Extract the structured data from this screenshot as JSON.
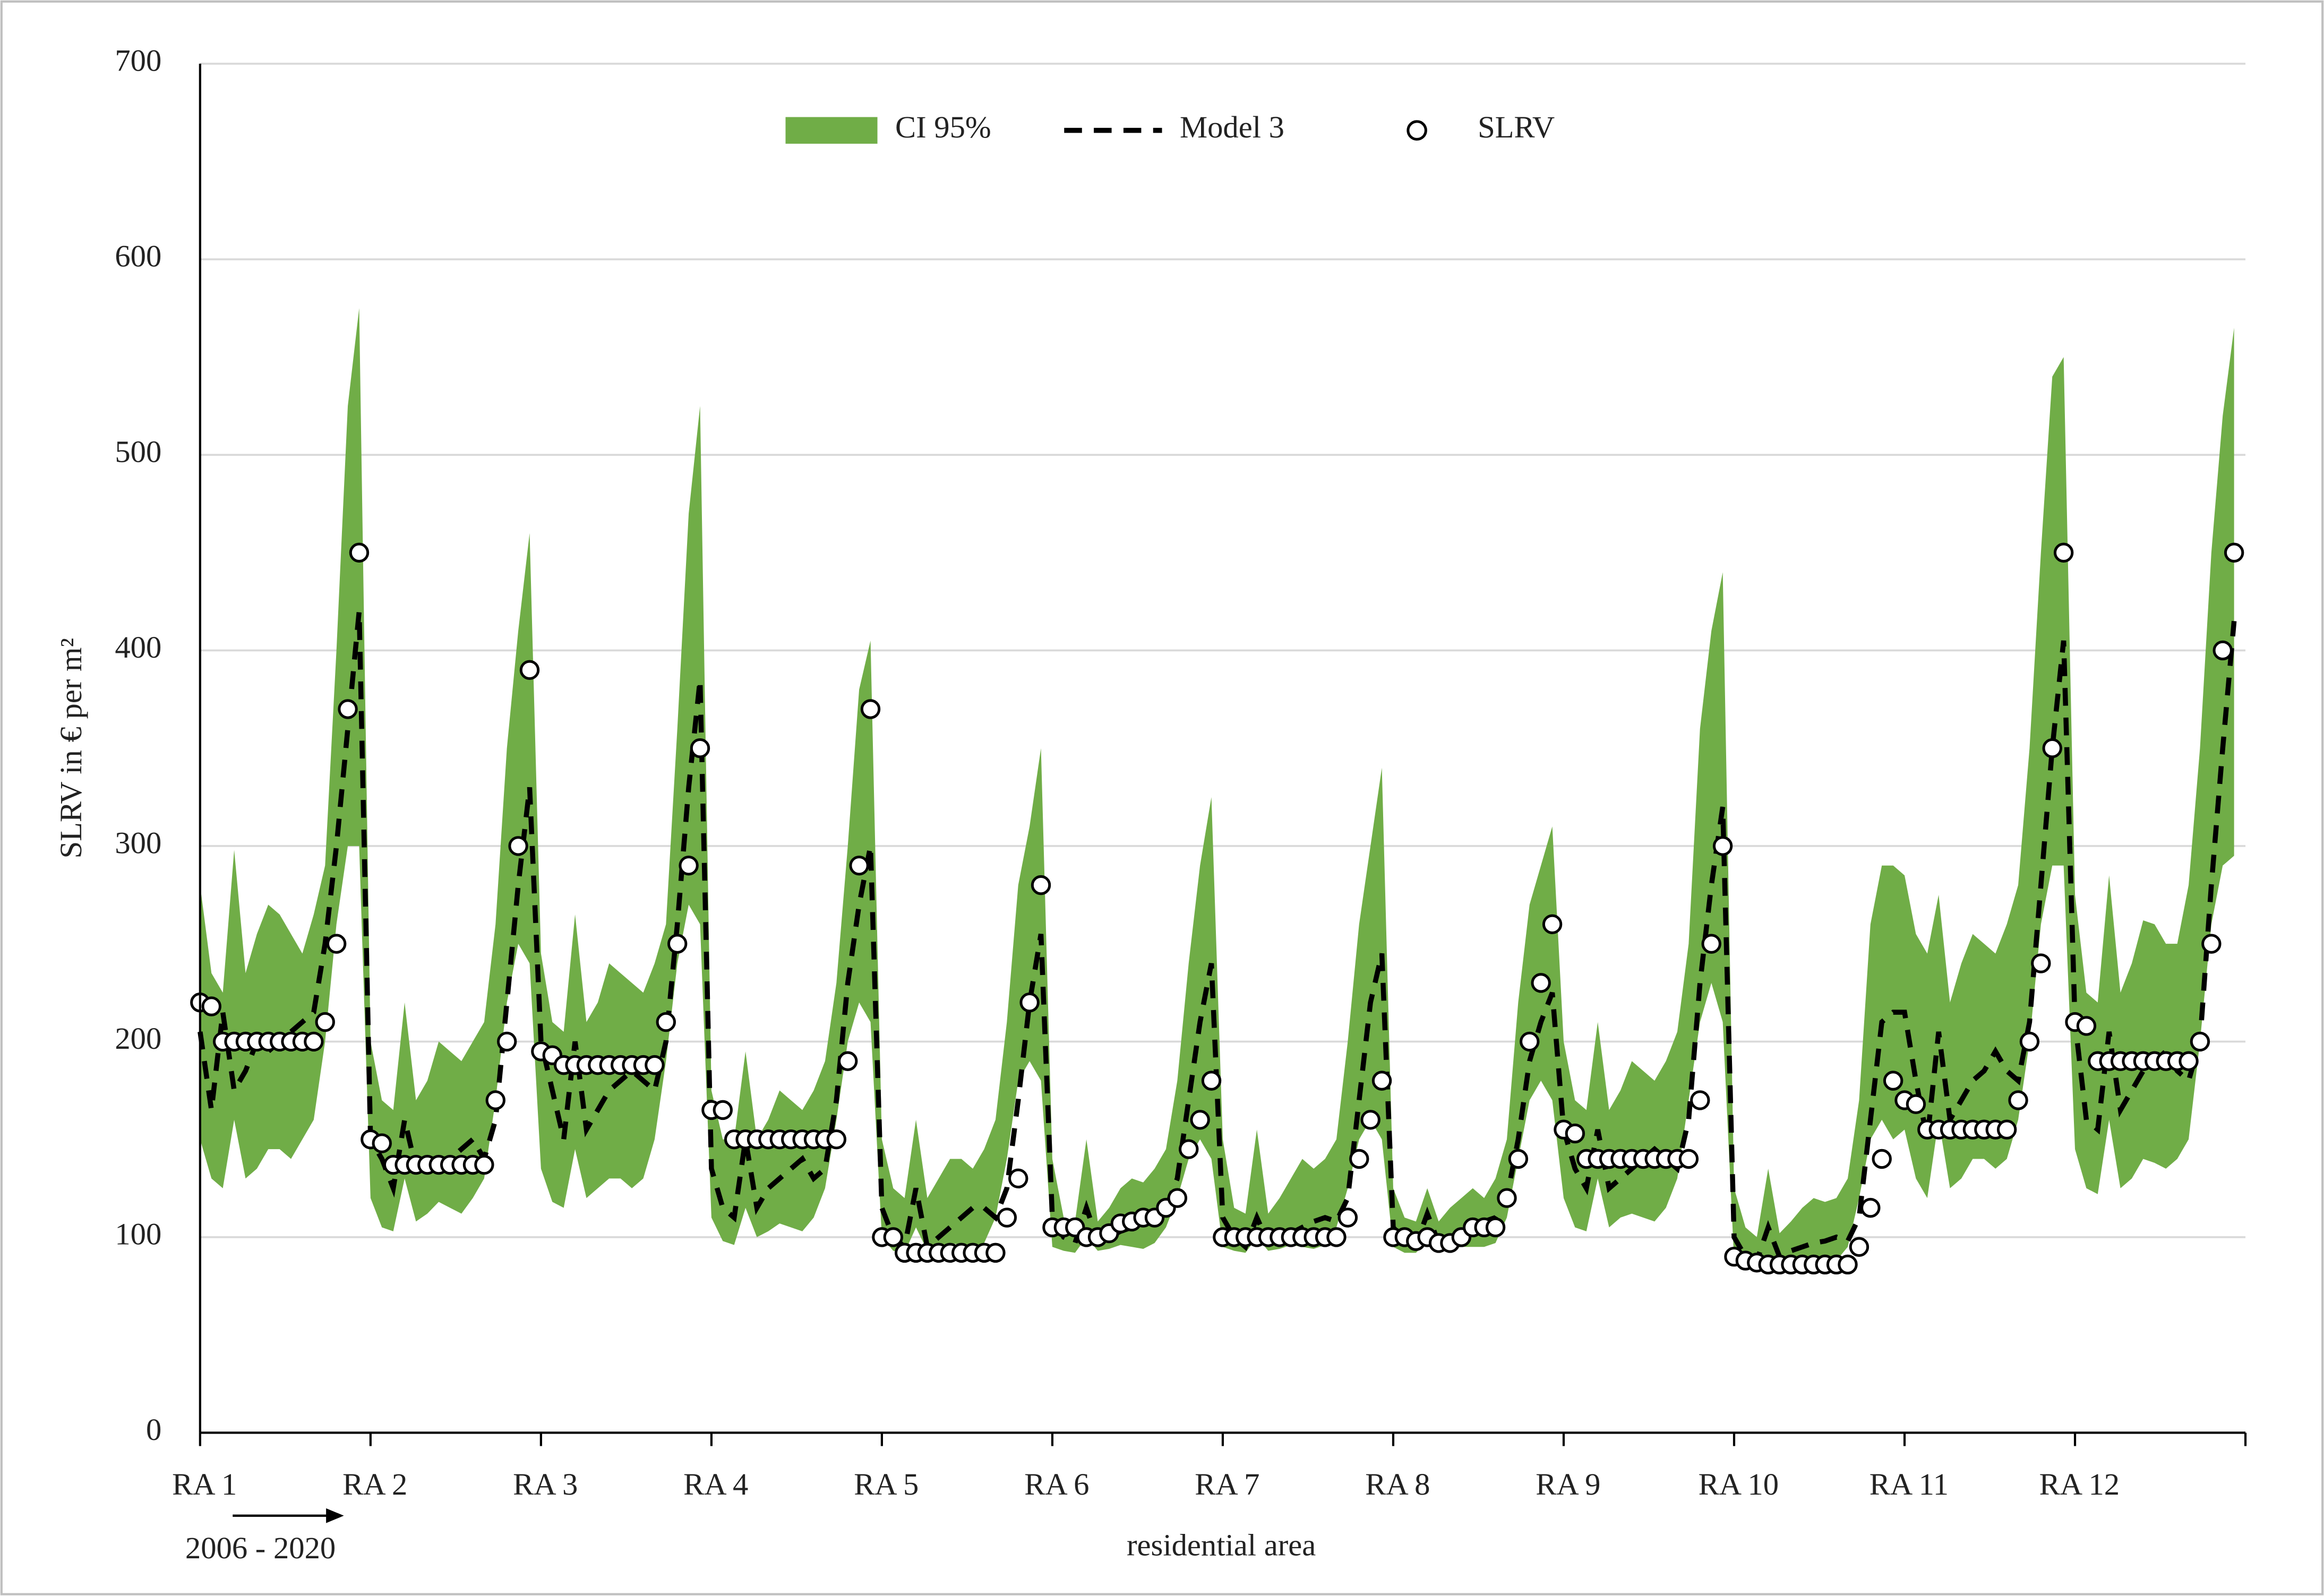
{
  "chart_data": {
    "type": "line",
    "ylabel": "SLRV in € per m²",
    "xlabel": "residential area",
    "annotation": "2006 - 2020",
    "ylim": [
      0,
      700
    ],
    "yticks": [
      0,
      100,
      200,
      300,
      400,
      500,
      600,
      700
    ],
    "xlim": [
      0,
      180
    ],
    "xticks": [
      0,
      15,
      30,
      45,
      60,
      75,
      90,
      105,
      120,
      135,
      150,
      165,
      180
    ],
    "grid": true,
    "legend": "top",
    "categories": [
      "RA 1",
      null,
      null,
      null,
      null,
      null,
      null,
      null,
      null,
      null,
      null,
      null,
      null,
      null,
      null,
      "RA 2",
      null,
      null,
      null,
      null,
      null,
      null,
      null,
      null,
      null,
      null,
      null,
      null,
      null,
      null,
      "RA 3",
      null,
      null,
      null,
      null,
      null,
      null,
      null,
      null,
      null,
      null,
      null,
      null,
      null,
      null,
      "RA 4",
      null,
      null,
      null,
      null,
      null,
      null,
      null,
      null,
      null,
      null,
      null,
      null,
      null,
      null,
      "RA 5",
      null,
      null,
      null,
      null,
      null,
      null,
      null,
      null,
      null,
      null,
      null,
      null,
      null,
      null,
      "RA 6",
      null,
      null,
      null,
      null,
      null,
      null,
      null,
      null,
      null,
      null,
      null,
      null,
      null,
      null,
      "RA 7",
      null,
      null,
      null,
      null,
      null,
      null,
      null,
      null,
      null,
      null,
      null,
      null,
      null,
      null,
      "RA 8",
      null,
      null,
      null,
      null,
      null,
      null,
      null,
      null,
      null,
      null,
      null,
      null,
      null,
      null,
      "RA 9",
      null,
      null,
      null,
      null,
      null,
      null,
      null,
      null,
      null,
      null,
      null,
      null,
      null,
      null,
      "RA 10",
      null,
      null,
      null,
      null,
      null,
      null,
      null,
      null,
      null,
      null,
      null,
      null,
      null,
      null,
      "RA 11",
      null,
      null,
      null,
      null,
      null,
      null,
      null,
      null,
      null,
      null,
      null,
      null,
      null,
      null,
      "RA 12",
      null,
      null,
      null,
      null,
      null,
      null,
      null,
      null,
      null,
      null,
      null,
      null,
      null,
      null
    ],
    "series": [
      {
        "name": "CI 95%",
        "color": "#70ad47",
        "style": "band",
        "upper": [
          280,
          235,
          225,
          298,
          235,
          255,
          270,
          265,
          255,
          245,
          265,
          290,
          400,
          525,
          575,
          200,
          170,
          165,
          220,
          170,
          180,
          200,
          195,
          190,
          200,
          210,
          260,
          350,
          410,
          460,
          245,
          210,
          205,
          265,
          210,
          220,
          240,
          235,
          230,
          225,
          240,
          260,
          360,
          470,
          525,
          175,
          150,
          150,
          195,
          150,
          160,
          175,
          170,
          165,
          175,
          190,
          230,
          300,
          380,
          405,
          150,
          125,
          120,
          160,
          120,
          130,
          140,
          140,
          135,
          145,
          160,
          210,
          280,
          310,
          350,
          140,
          110,
          108,
          150,
          108,
          115,
          125,
          130,
          128,
          135,
          145,
          180,
          240,
          290,
          325,
          150,
          115,
          112,
          155,
          112,
          120,
          130,
          140,
          135,
          140,
          150,
          200,
          260,
          300,
          340,
          125,
          110,
          108,
          125,
          108,
          115,
          120,
          125,
          120,
          130,
          150,
          220,
          270,
          290,
          310,
          200,
          170,
          165,
          210,
          165,
          175,
          190,
          185,
          180,
          190,
          205,
          250,
          360,
          410,
          440,
          125,
          105,
          100,
          135,
          102,
          108,
          115,
          120,
          118,
          120,
          130,
          170,
          260,
          290,
          290,
          285,
          255,
          245,
          275,
          220,
          240,
          255,
          250,
          245,
          260,
          280,
          350,
          450,
          540,
          550,
          275,
          225,
          220,
          285,
          225,
          240,
          262,
          260,
          250,
          250,
          280,
          350,
          450,
          520,
          565
        ],
        "lower": [
          150,
          130,
          125,
          160,
          130,
          135,
          145,
          145,
          140,
          150,
          160,
          200,
          260,
          300,
          300,
          120,
          105,
          103,
          130,
          108,
          112,
          118,
          115,
          112,
          120,
          130,
          170,
          220,
          250,
          240,
          135,
          118,
          115,
          145,
          120,
          125,
          130,
          130,
          125,
          130,
          150,
          190,
          240,
          270,
          260,
          110,
          98,
          96,
          115,
          100,
          103,
          107,
          105,
          103,
          110,
          125,
          160,
          200,
          220,
          210,
          100,
          93,
          92,
          105,
          93,
          95,
          97,
          96,
          94,
          97,
          110,
          140,
          180,
          190,
          180,
          95,
          93,
          92,
          100,
          93,
          94,
          96,
          95,
          94,
          97,
          105,
          120,
          140,
          150,
          140,
          95,
          93,
          92,
          100,
          93,
          94,
          96,
          95,
          94,
          96,
          105,
          125,
          150,
          160,
          150,
          95,
          92,
          92,
          98,
          93,
          94,
          95,
          95,
          95,
          97,
          110,
          140,
          170,
          180,
          170,
          120,
          105,
          103,
          130,
          105,
          110,
          112,
          110,
          108,
          115,
          130,
          170,
          210,
          230,
          210,
          88,
          86,
          85,
          90,
          86,
          87,
          88,
          88,
          87,
          88,
          95,
          120,
          150,
          160,
          150,
          155,
          130,
          120,
          160,
          125,
          130,
          140,
          140,
          135,
          140,
          160,
          200,
          260,
          290,
          290,
          145,
          125,
          122,
          160,
          125,
          130,
          140,
          138,
          135,
          140,
          150,
          200,
          260,
          290,
          295
        ]
      },
      {
        "name": "Model 3",
        "color": "#000000",
        "style": "dashed",
        "values": [
          205,
          165,
          215,
          175,
          185,
          200,
          195,
          200,
          205,
          210,
          215,
          250,
          300,
          360,
          420,
          150,
          140,
          125,
          160,
          135,
          140,
          140,
          140,
          145,
          150,
          140,
          160,
          220,
          280,
          330,
          200,
          175,
          150,
          200,
          155,
          165,
          175,
          180,
          185,
          180,
          175,
          200,
          260,
          330,
          385,
          135,
          115,
          110,
          150,
          115,
          125,
          130,
          135,
          140,
          130,
          135,
          170,
          230,
          270,
          300,
          115,
          100,
          95,
          125,
          95,
          100,
          105,
          110,
          115,
          115,
          110,
          125,
          170,
          220,
          255,
          110,
          100,
          97,
          115,
          98,
          100,
          103,
          105,
          108,
          110,
          115,
          130,
          170,
          210,
          240,
          110,
          100,
          95,
          110,
          97,
          100,
          102,
          105,
          108,
          110,
          108,
          120,
          170,
          220,
          245,
          105,
          98,
          96,
          112,
          97,
          100,
          103,
          105,
          108,
          110,
          120,
          150,
          190,
          210,
          225,
          155,
          135,
          125,
          155,
          125,
          130,
          135,
          140,
          145,
          140,
          135,
          160,
          230,
          280,
          320,
          100,
          90,
          88,
          105,
          90,
          93,
          95,
          97,
          98,
          100,
          98,
          110,
          160,
          210,
          215,
          215,
          180,
          150,
          205,
          160,
          170,
          180,
          185,
          195,
          185,
          180,
          210,
          280,
          350,
          405,
          210,
          160,
          155,
          205,
          165,
          175,
          185,
          190,
          195,
          185,
          180,
          200,
          280,
          350,
          415
        ]
      },
      {
        "name": "SLRV",
        "color": "#000000",
        "style": "markers",
        "values": [
          220,
          218,
          200,
          200,
          200,
          200,
          200,
          200,
          200,
          200,
          200,
          210,
          250,
          370,
          450,
          150,
          148,
          137,
          137,
          137,
          137,
          137,
          137,
          137,
          137,
          137,
          170,
          200,
          300,
          390,
          195,
          193,
          188,
          188,
          188,
          188,
          188,
          188,
          188,
          188,
          188,
          210,
          250,
          290,
          350,
          165,
          165,
          150,
          150,
          150,
          150,
          150,
          150,
          150,
          150,
          150,
          150,
          190,
          290,
          370,
          100,
          100,
          92,
          92,
          92,
          92,
          92,
          92,
          92,
          92,
          92,
          110,
          130,
          220,
          280,
          105,
          105,
          105,
          100,
          100,
          102,
          107,
          108,
          110,
          110,
          115,
          120,
          145,
          160,
          180,
          100,
          100,
          100,
          100,
          100,
          100,
          100,
          100,
          100,
          100,
          100,
          110,
          140,
          160,
          180,
          100,
          100,
          98,
          100,
          97,
          97,
          100,
          105,
          105,
          105,
          120,
          140,
          200,
          230,
          260,
          155,
          153,
          140,
          140,
          140,
          140,
          140,
          140,
          140,
          140,
          140,
          140,
          170,
          250,
          300,
          90,
          88,
          87,
          86,
          86,
          86,
          86,
          86,
          86,
          86,
          86,
          95,
          115,
          140,
          180,
          170,
          168,
          155,
          155,
          155,
          155,
          155,
          155,
          155,
          155,
          170,
          200,
          240,
          350,
          450,
          210,
          208,
          190,
          190,
          190,
          190,
          190,
          190,
          190,
          190,
          190,
          200,
          250,
          400,
          450
        ]
      }
    ]
  }
}
